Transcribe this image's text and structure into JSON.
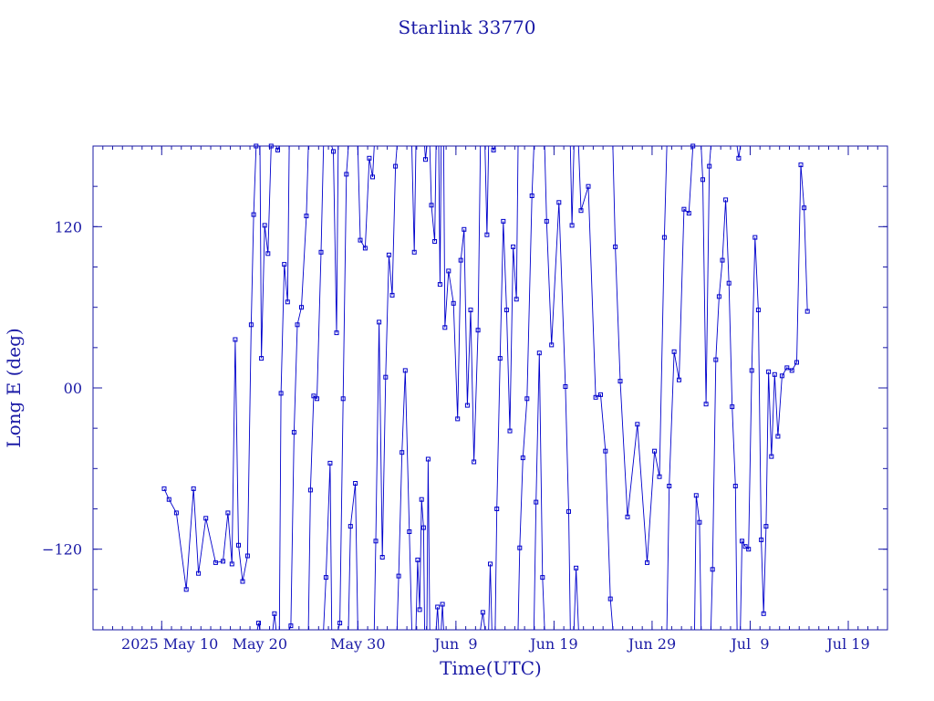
{
  "chart_data": {
    "type": "scatter",
    "title": "Starlink 33770",
    "xlabel": "Time(UTC)",
    "ylabel": "Long E (deg)",
    "x_unit": "date (UTC)",
    "xlim": [
      "2025-05-03",
      "2025-07-23"
    ],
    "ylim": [
      -180,
      180
    ],
    "x_tick_dates": [
      "2025-05-10",
      "2025-05-20",
      "2025-05-30",
      "2025-06-09",
      "2025-06-19",
      "2025-06-29",
      "2025-07-09",
      "2025-07-19"
    ],
    "x_tick_labels": [
      "2025 May 10",
      "May 20",
      "May 30",
      "Jun  9",
      "Jun 19",
      "Jun 29",
      "Jul  9",
      "Jul 19"
    ],
    "y_ticks": [
      -120,
      0,
      120
    ],
    "y_tick_labels": [
      "−120",
      "00",
      "120"
    ],
    "line_connected": true,
    "marker": "square",
    "grid": false,
    "legend": "none",
    "color": "#0000cc",
    "series": [
      {
        "points": [
          [
            "2025-05-10",
            -75
          ],
          [
            "2025-05-10",
            -83
          ],
          [
            "2025-05-11",
            -93
          ],
          [
            "2025-05-12",
            -150
          ],
          [
            "2025-05-13",
            -75
          ],
          [
            "2025-05-13",
            -138
          ],
          [
            "2025-05-14",
            -97
          ],
          [
            "2025-05-15",
            -130
          ],
          [
            "2025-05-16",
            -129
          ],
          [
            "2025-05-16",
            -93
          ],
          [
            "2025-05-17",
            -131
          ],
          [
            "2025-05-17",
            36
          ],
          [
            "2025-05-17",
            -117
          ],
          [
            "2025-05-18",
            -144
          ],
          [
            "2025-05-18",
            -125
          ],
          [
            "2025-05-19",
            47
          ],
          [
            "2025-05-19",
            129
          ],
          [
            "2025-05-19",
            180
          ],
          [
            "2025-05-19",
            -175
          ],
          [
            "2025-05-20",
            22
          ],
          [
            "2025-05-20",
            121
          ],
          [
            "2025-05-20",
            100
          ],
          [
            "2025-05-21",
            180
          ],
          [
            "2025-05-21",
            -168
          ],
          [
            "2025-05-21",
            177
          ],
          [
            "2025-05-22",
            -4
          ],
          [
            "2025-05-22",
            92
          ],
          [
            "2025-05-22",
            64
          ],
          [
            "2025-05-23",
            -177
          ],
          [
            "2025-05-23",
            -33
          ],
          [
            "2025-05-23",
            47
          ],
          [
            "2025-05-24",
            60
          ],
          [
            "2025-05-24",
            128
          ],
          [
            "2025-05-25",
            -76
          ],
          [
            "2025-05-25",
            -6
          ],
          [
            "2025-05-25",
            -8
          ],
          [
            "2025-05-26",
            101
          ],
          [
            "2025-05-26",
            -141
          ],
          [
            "2025-05-27",
            -56
          ],
          [
            "2025-05-27",
            176
          ],
          [
            "2025-05-27",
            41
          ],
          [
            "2025-05-28",
            -175
          ],
          [
            "2025-05-28",
            -8
          ],
          [
            "2025-05-28",
            159
          ],
          [
            "2025-05-29",
            -103
          ],
          [
            "2025-05-29",
            -71
          ],
          [
            "2025-05-30",
            110
          ],
          [
            "2025-05-30",
            104
          ],
          [
            "2025-05-31",
            171
          ],
          [
            "2025-05-31",
            157
          ],
          [
            "2025-05-31",
            -114
          ],
          [
            "2025-06-01",
            49
          ],
          [
            "2025-06-01",
            -126
          ],
          [
            "2025-06-01",
            8
          ],
          [
            "2025-06-02",
            99
          ],
          [
            "2025-06-02",
            69
          ],
          [
            "2025-06-02",
            165
          ],
          [
            "2025-06-03",
            -140
          ],
          [
            "2025-06-03",
            -48
          ],
          [
            "2025-06-03",
            13
          ],
          [
            "2025-06-04",
            -107
          ],
          [
            "2025-06-04",
            101
          ],
          [
            "2025-06-05",
            -128
          ],
          [
            "2025-06-05",
            -165
          ],
          [
            "2025-06-05",
            -83
          ],
          [
            "2025-06-05",
            -104
          ],
          [
            "2025-06-05",
            170
          ],
          [
            "2025-06-06",
            -53
          ],
          [
            "2025-06-06",
            136
          ],
          [
            "2025-06-06",
            109
          ],
          [
            "2025-06-07",
            -163
          ],
          [
            "2025-06-07",
            77
          ],
          [
            "2025-06-07",
            -161
          ],
          [
            "2025-06-07",
            45
          ],
          [
            "2025-06-08",
            87
          ],
          [
            "2025-06-08",
            63
          ],
          [
            "2025-06-09",
            -23
          ],
          [
            "2025-06-09",
            95
          ],
          [
            "2025-06-09",
            118
          ],
          [
            "2025-06-10",
            -13
          ],
          [
            "2025-06-10",
            58
          ],
          [
            "2025-06-10",
            -55
          ],
          [
            "2025-06-11",
            43
          ],
          [
            "2025-06-11",
            -167
          ],
          [
            "2025-06-12",
            114
          ],
          [
            "2025-06-12",
            -131
          ],
          [
            "2025-06-12",
            177
          ],
          [
            "2025-06-13",
            -90
          ],
          [
            "2025-06-13",
            22
          ],
          [
            "2025-06-13",
            124
          ],
          [
            "2025-06-14",
            58
          ],
          [
            "2025-06-14",
            -32
          ],
          [
            "2025-06-14",
            105
          ],
          [
            "2025-06-15",
            66
          ],
          [
            "2025-06-15",
            -119
          ],
          [
            "2025-06-15",
            -52
          ],
          [
            "2025-06-16",
            -8
          ],
          [
            "2025-06-16",
            143
          ],
          [
            "2025-06-17",
            -85
          ],
          [
            "2025-06-17",
            26
          ],
          [
            "2025-06-17",
            -141
          ],
          [
            "2025-06-18",
            124
          ],
          [
            "2025-06-18",
            32
          ],
          [
            "2025-06-19",
            138
          ],
          [
            "2025-06-20",
            1
          ],
          [
            "2025-06-20",
            -92
          ],
          [
            "2025-06-20",
            121
          ],
          [
            "2025-06-21",
            -134
          ],
          [
            "2025-06-21",
            132
          ],
          [
            "2025-06-22",
            150
          ],
          [
            "2025-06-23",
            -7
          ],
          [
            "2025-06-23",
            -5
          ],
          [
            "2025-06-24",
            -47
          ],
          [
            "2025-06-24",
            -157
          ],
          [
            "2025-06-25",
            105
          ],
          [
            "2025-06-25",
            5
          ],
          [
            "2025-06-26",
            -96
          ],
          [
            "2025-06-27",
            -27
          ],
          [
            "2025-06-28",
            -130
          ],
          [
            "2025-06-29",
            -47
          ],
          [
            "2025-06-29",
            -66
          ],
          [
            "2025-06-30",
            112
          ],
          [
            "2025-06-30",
            -73
          ],
          [
            "2025-07-01",
            27
          ],
          [
            "2025-07-01",
            6
          ],
          [
            "2025-07-02",
            133
          ],
          [
            "2025-07-02",
            130
          ],
          [
            "2025-07-03",
            180
          ],
          [
            "2025-07-03",
            -80
          ],
          [
            "2025-07-03",
            -100
          ],
          [
            "2025-07-04",
            155
          ],
          [
            "2025-07-04",
            -12
          ],
          [
            "2025-07-04",
            165
          ],
          [
            "2025-07-05",
            -135
          ],
          [
            "2025-07-05",
            21
          ],
          [
            "2025-07-05",
            68
          ],
          [
            "2025-07-06",
            95
          ],
          [
            "2025-07-06",
            140
          ],
          [
            "2025-07-06",
            78
          ],
          [
            "2025-07-07",
            -14
          ],
          [
            "2025-07-07",
            -73
          ],
          [
            "2025-07-07",
            171
          ],
          [
            "2025-07-08",
            -114
          ],
          [
            "2025-07-08",
            -118
          ],
          [
            "2025-07-08",
            -120
          ],
          [
            "2025-07-09",
            13
          ],
          [
            "2025-07-09",
            112
          ],
          [
            "2025-07-09",
            58
          ],
          [
            "2025-07-10",
            -113
          ],
          [
            "2025-07-10",
            -168
          ],
          [
            "2025-07-10",
            -103
          ],
          [
            "2025-07-10",
            12
          ],
          [
            "2025-07-11",
            -51
          ],
          [
            "2025-07-11",
            10
          ],
          [
            "2025-07-11",
            -36
          ],
          [
            "2025-07-12",
            9
          ],
          [
            "2025-07-12",
            15
          ],
          [
            "2025-07-13",
            13
          ],
          [
            "2025-07-13",
            19
          ],
          [
            "2025-07-14",
            166
          ],
          [
            "2025-07-14",
            134
          ],
          [
            "2025-07-14",
            57
          ]
        ]
      }
    ]
  }
}
